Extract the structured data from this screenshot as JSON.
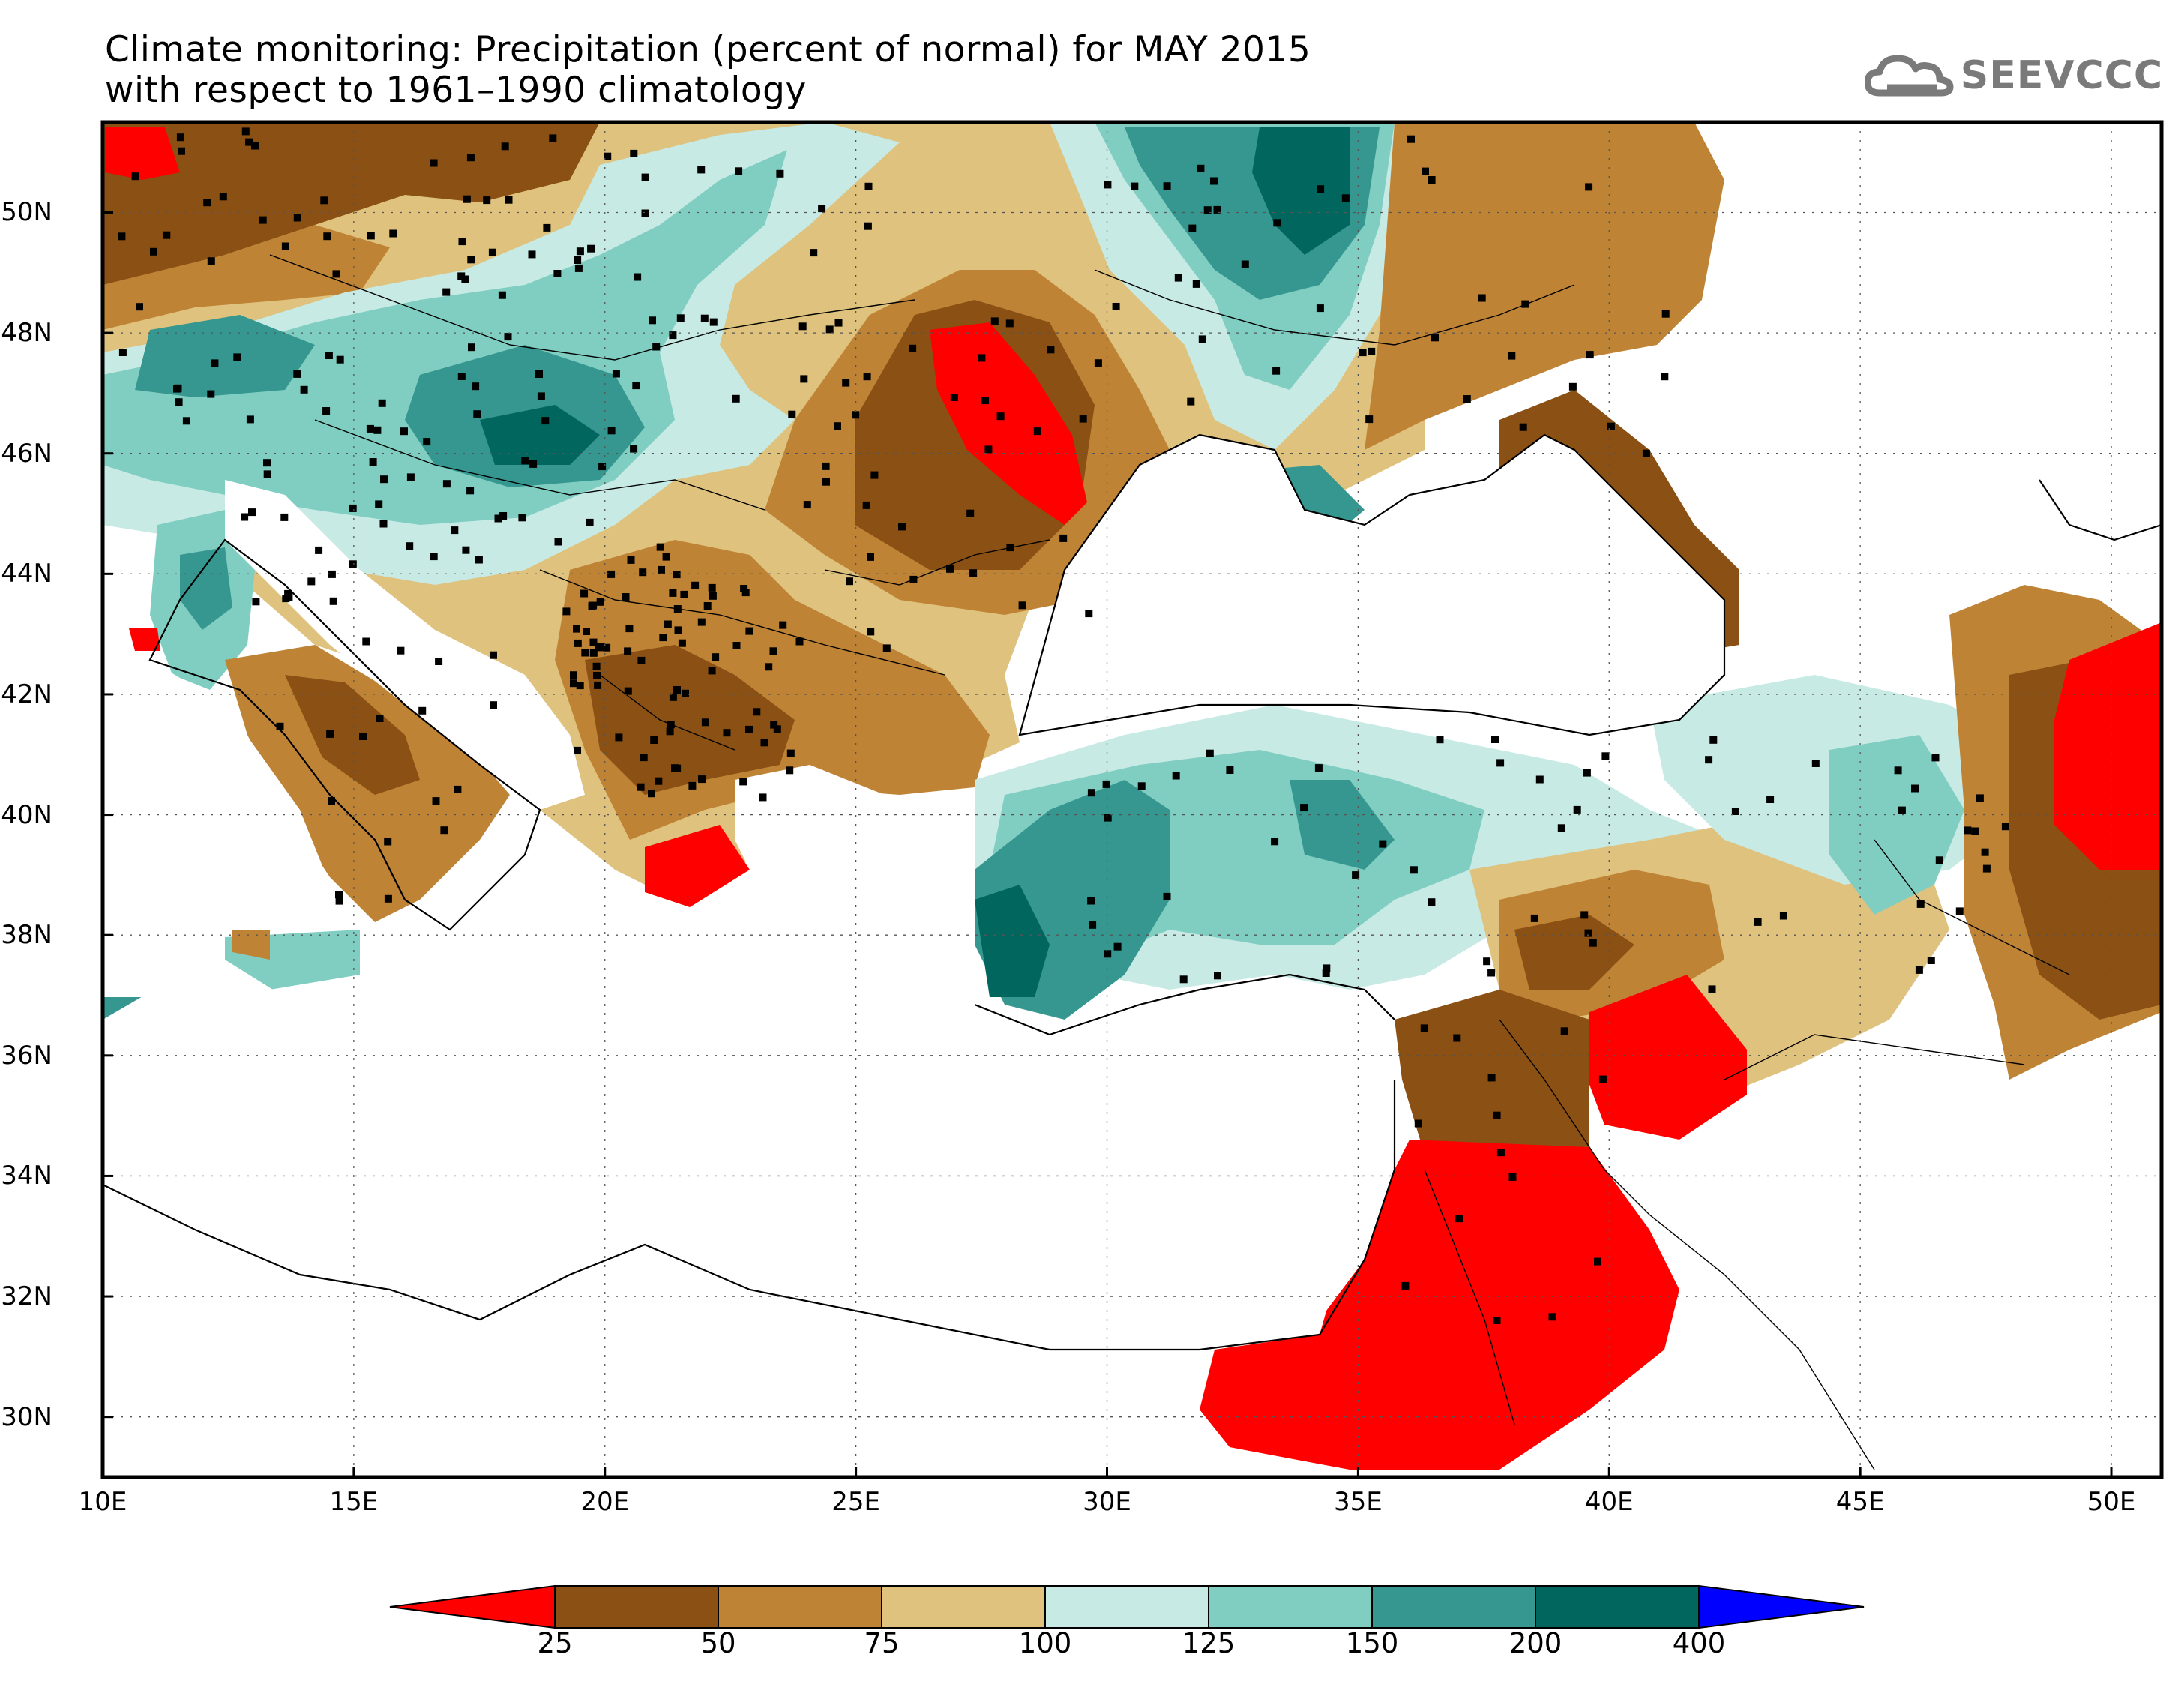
{
  "title": {
    "line1": "Climate monitoring: Precipitation (percent of normal) for MAY 2015",
    "line2": "with respect to 1961–1990 climatology"
  },
  "logo": {
    "text": "SEEVCCC",
    "icon": "cloud-icon"
  },
  "map": {
    "region": "South-East Europe & Eastern Mediterranean",
    "lon_range": [
      10,
      51
    ],
    "lat_range": [
      29,
      51.5
    ],
    "grid": true,
    "lat_ticks": [
      "50N",
      "48N",
      "46N",
      "44N",
      "42N",
      "40N",
      "38N",
      "36N",
      "34N",
      "32N",
      "30N"
    ],
    "lon_ticks": [
      "10E",
      "15E",
      "20E",
      "25E",
      "30E",
      "35E",
      "40E",
      "45E",
      "50E"
    ],
    "layers": [
      "precipitation anomaly shading",
      "country borders",
      "coastlines",
      "station markers"
    ]
  },
  "colorbar": {
    "boundaries": [
      "25",
      "50",
      "75",
      "100",
      "125",
      "150",
      "200",
      "400"
    ],
    "classes": [
      {
        "range": "<25",
        "color": "#ff0000"
      },
      {
        "range": "25-50",
        "color": "#8b5013"
      },
      {
        "range": "50-75",
        "color": "#bf8336"
      },
      {
        "range": "75-100",
        "color": "#dfc27d"
      },
      {
        "range": "100-125",
        "color": "#c7eae5"
      },
      {
        "range": "125-150",
        "color": "#80cdc1"
      },
      {
        "range": "150-200",
        "color": "#35978f"
      },
      {
        "range": "200-400",
        "color": "#01665e"
      },
      {
        "range": ">400",
        "color": "#0000ff"
      }
    ]
  }
}
